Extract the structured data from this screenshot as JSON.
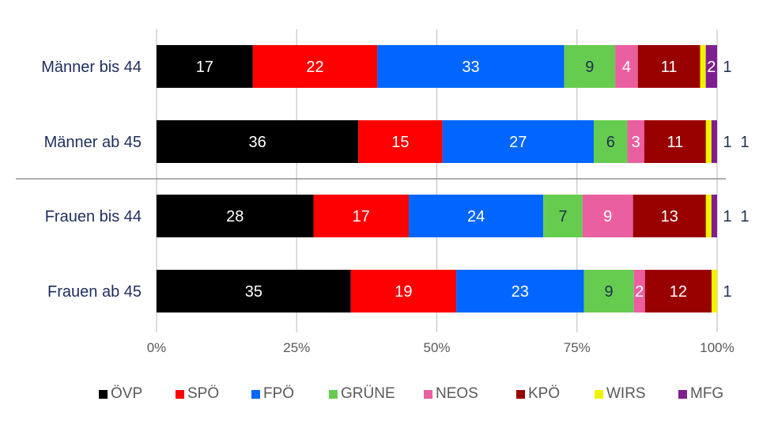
{
  "chart_data": {
    "type": "bar",
    "orientation": "horizontal",
    "stacked": "percent",
    "categories": [
      "Männer bis 44",
      "Männer ab 45",
      "Frauen bis 44",
      "Frauen ab 45"
    ],
    "series": [
      {
        "name": "ÖVP",
        "color": "#000000",
        "label_color": "#ffffff",
        "values": [
          17,
          36,
          28,
          35
        ]
      },
      {
        "name": "SPÖ",
        "color": "#ff0000",
        "label_color": "#ffffff",
        "values": [
          22,
          15,
          17,
          19
        ]
      },
      {
        "name": "FPÖ",
        "color": "#0066ff",
        "label_color": "#ffffff",
        "values": [
          33,
          27,
          24,
          23
        ]
      },
      {
        "name": "GRÜNE",
        "color": "#66cc4f",
        "label_color": "#1f3050",
        "values": [
          9,
          6,
          7,
          9
        ]
      },
      {
        "name": "NEOS",
        "color": "#ea5fa0",
        "label_color": "#ffffff",
        "values": [
          4,
          3,
          9,
          2
        ]
      },
      {
        "name": "KPÖ",
        "color": "#990000",
        "label_color": "#ffffff",
        "values": [
          11,
          11,
          13,
          12
        ]
      },
      {
        "name": "WIRS",
        "color": "#f2f200",
        "label_color": "#1f3050",
        "values": [
          1,
          1,
          1,
          1
        ]
      },
      {
        "name": "MFG",
        "color": "#7f1f8f",
        "label_color": "#ffffff",
        "values": [
          2,
          1,
          1,
          0
        ]
      }
    ],
    "x_ticks": [
      "0%",
      "25%",
      "50%",
      "75%",
      "100%"
    ],
    "xlim": [
      0,
      100
    ],
    "grid": true,
    "separator_after_category": 1,
    "legend_position": "bottom",
    "category_label_color": "#1f2d5c"
  }
}
